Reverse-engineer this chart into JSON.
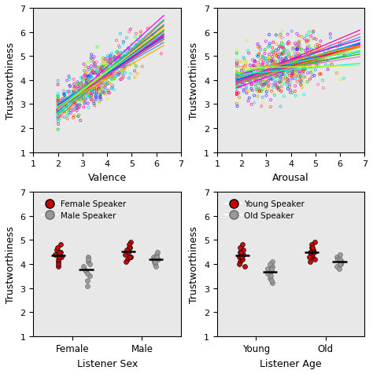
{
  "scatter_colors": [
    "#FF00FF",
    "#00CCCC",
    "#00CC00",
    "#FF6600",
    "#9933FF",
    "#FF0066",
    "#3399FF",
    "#AAAA00",
    "#FF66CC",
    "#00EE99",
    "#0044FF",
    "#FF3300",
    "#AA00FF",
    "#00AAFF",
    "#FFAA00",
    "#FF00AA",
    "#44FF44",
    "#FF4488",
    "#00FFCC",
    "#CCFF00"
  ],
  "valence_xlabel": "Valence",
  "arousal_xlabel": "Arousal",
  "trustworthiness_ylabel": "Trustworthiness",
  "listener_sex_xlabel": "Listener Sex",
  "listener_age_xlabel": "Listener Age",
  "listener_sex_xticks": [
    "Female",
    "Male"
  ],
  "listener_age_xticks": [
    "Young",
    "Old"
  ],
  "scatter_ylim": [
    1,
    7
  ],
  "scatter_xlim": [
    1,
    7
  ],
  "dot_ylim": [
    1,
    7
  ],
  "female_speaker_color": "#CC0000",
  "male_speaker_color": "#999999",
  "young_speaker_color": "#CC0000",
  "old_speaker_color": "#999999",
  "legend_bot_left": [
    "Female Speaker",
    "Male Speaker"
  ],
  "legend_bot_right": [
    "Young Speaker",
    "Old Speaker"
  ],
  "panel_bg": "#E8E8E8"
}
